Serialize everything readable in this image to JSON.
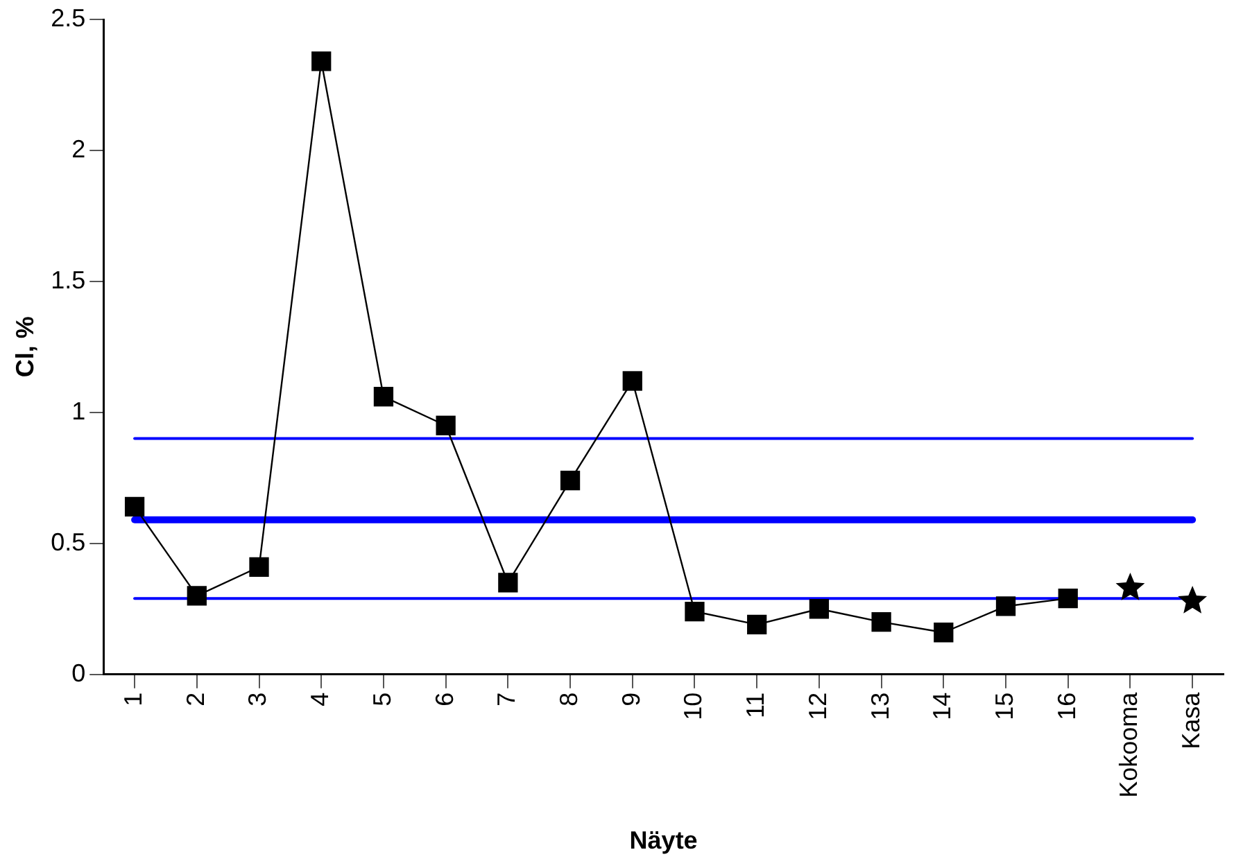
{
  "chart_data": {
    "type": "line",
    "xlabel": "Näyte",
    "ylabel": "Cl, %",
    "categories": [
      "1",
      "2",
      "3",
      "4",
      "5",
      "6",
      "7",
      "8",
      "9",
      "10",
      "11",
      "12",
      "13",
      "14",
      "15",
      "16",
      "Kokooma",
      "Kasa"
    ],
    "series": [
      {
        "type": "line",
        "color": "#000000",
        "marker": "square",
        "values": [
          0.64,
          0.3,
          0.41,
          2.34,
          1.06,
          0.95,
          0.35,
          0.74,
          1.12,
          0.24,
          0.19,
          0.25,
          0.2,
          0.16,
          0.26,
          0.29,
          null,
          null
        ]
      },
      {
        "type": "scatter",
        "color": "#000000",
        "marker": "star",
        "values": [
          null,
          null,
          null,
          null,
          null,
          null,
          null,
          null,
          null,
          null,
          null,
          null,
          null,
          null,
          null,
          null,
          0.33,
          0.28
        ]
      }
    ],
    "ylim": [
      0,
      2.5
    ],
    "yticks": [
      0,
      0.5,
      1,
      1.5,
      2,
      2.5
    ],
    "ref_lines": [
      {
        "axis": "y",
        "value": 0.9,
        "color": "#0000ff"
      },
      {
        "axis": "y",
        "value": 0.59,
        "color": "#0000ff"
      },
      {
        "axis": "y",
        "value": 0.29,
        "color": "#0000ff"
      }
    ],
    "grid": false,
    "legend": false
  }
}
